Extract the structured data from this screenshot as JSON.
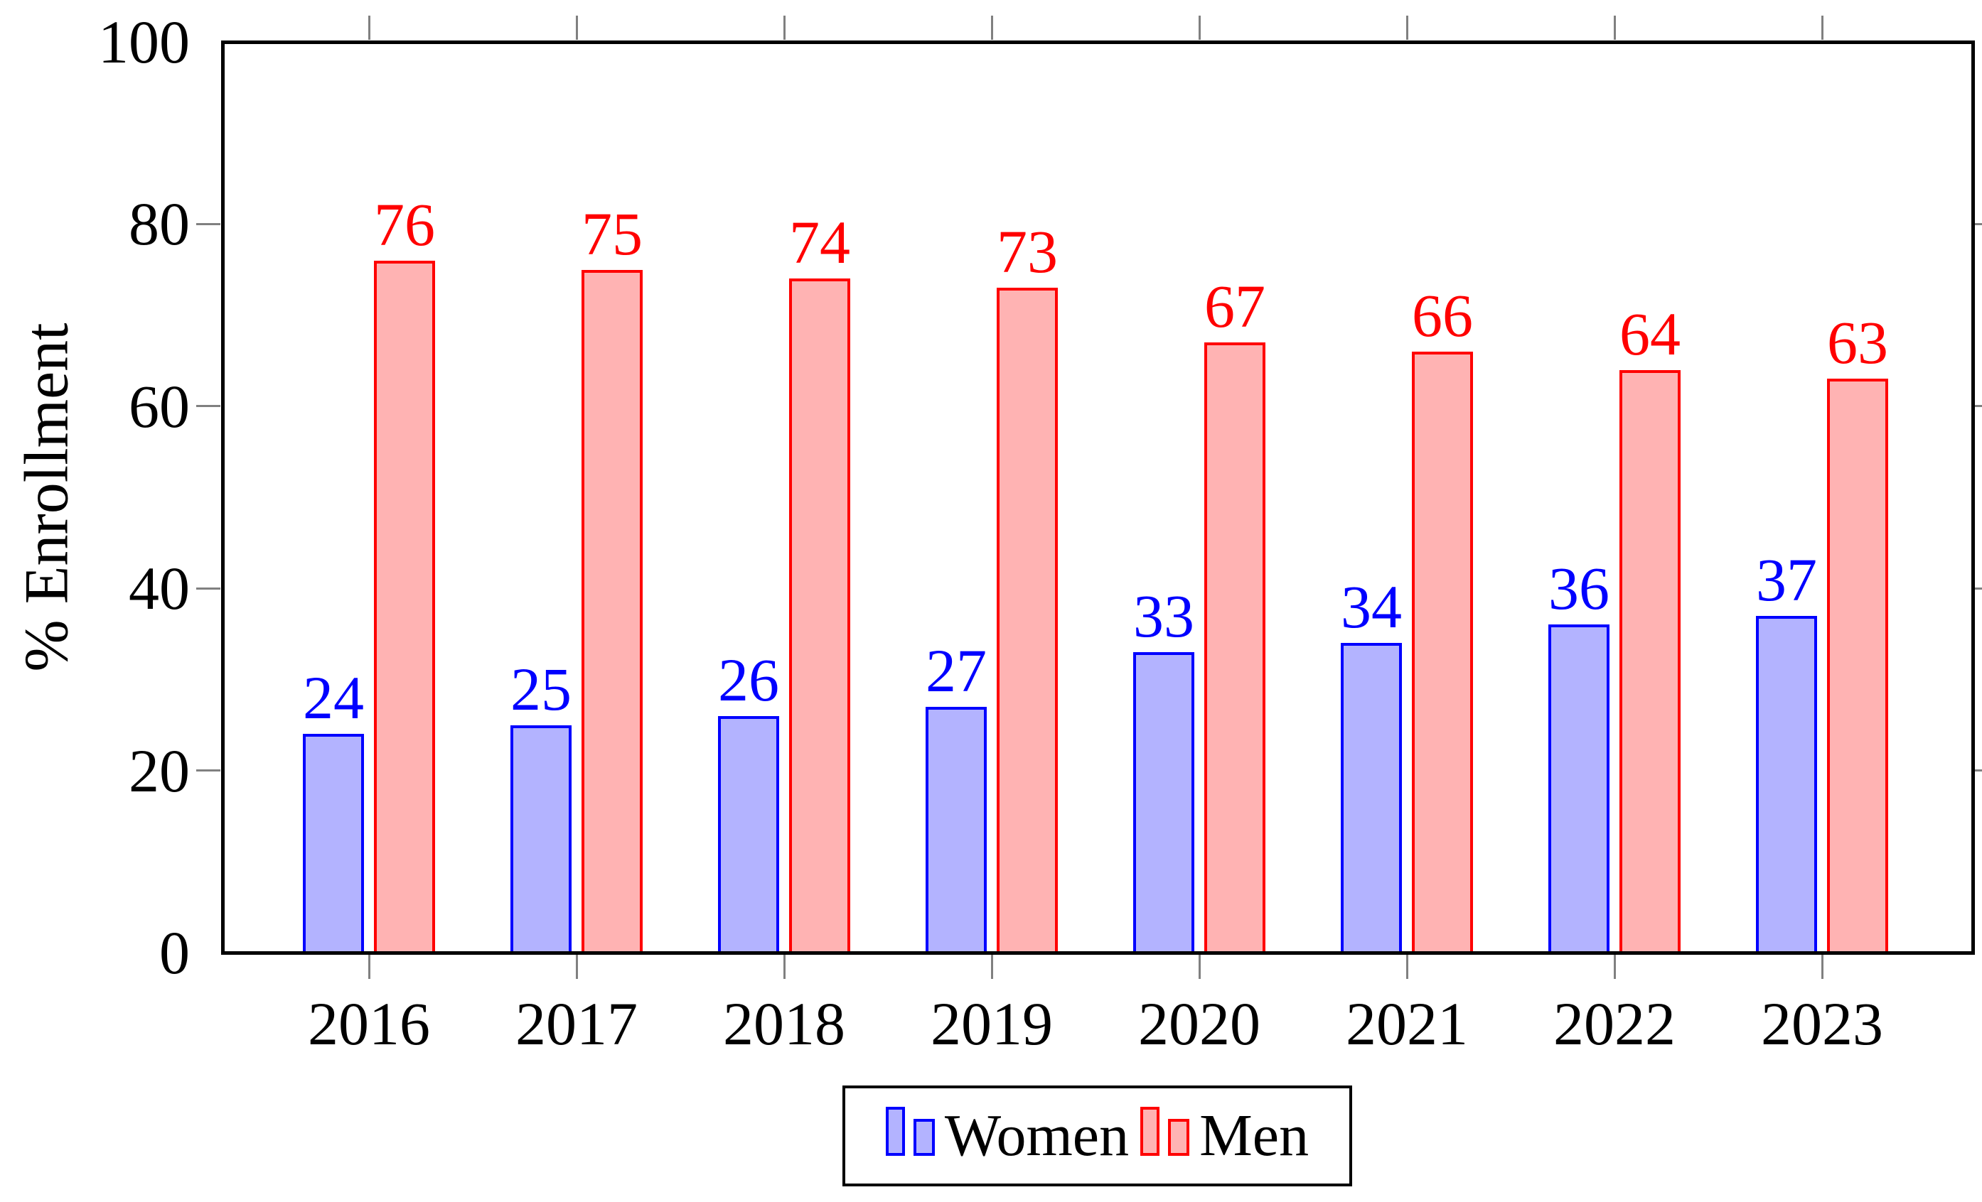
{
  "chart_data": {
    "type": "bar",
    "title": "",
    "categories": [
      "2016",
      "2017",
      "2018",
      "2019",
      "2020",
      "2021",
      "2022",
      "2023"
    ],
    "series": [
      {
        "name": "Women",
        "values": [
          24,
          25,
          26,
          27,
          33,
          34,
          36,
          37
        ],
        "fill_color": "#b3b3ff",
        "border_color": "#0000ff"
      },
      {
        "name": "Men",
        "values": [
          76,
          75,
          74,
          73,
          67,
          66,
          64,
          63
        ],
        "fill_color": "#ffb3b3",
        "border_color": "#ff0000"
      }
    ],
    "xlabel": "",
    "ylabel": "% Enrollment",
    "ylim": [
      0,
      100
    ],
    "yticks": [
      0,
      20,
      40,
      60,
      80,
      100
    ],
    "grid": false,
    "bar_value_labels": true,
    "value_label_color_follows_series": true,
    "legend_position": "bottom-center",
    "legend_entries": [
      "Women",
      "Men"
    ]
  },
  "colors": {
    "background": "#ffffff",
    "axis": "#000000",
    "tick_marks": "#808080",
    "text": "#000000"
  }
}
